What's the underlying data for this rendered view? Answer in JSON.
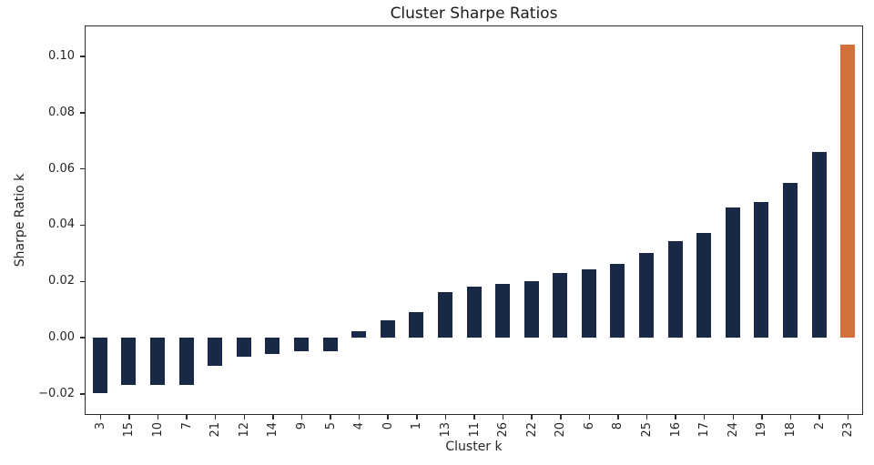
{
  "chart_data": {
    "type": "bar",
    "title": "Cluster Sharpe Ratios",
    "xlabel": "Cluster k",
    "ylabel": "Sharpe Ratio k",
    "categories": [
      "3",
      "15",
      "10",
      "7",
      "21",
      "12",
      "14",
      "9",
      "5",
      "4",
      "0",
      "1",
      "13",
      "11",
      "26",
      "22",
      "20",
      "6",
      "8",
      "25",
      "16",
      "17",
      "24",
      "19",
      "18",
      "2",
      "23"
    ],
    "values": [
      -0.02,
      -0.017,
      -0.017,
      -0.017,
      -0.01,
      -0.007,
      -0.006,
      -0.005,
      -0.005,
      0.002,
      0.006,
      0.009,
      0.016,
      0.018,
      0.019,
      0.02,
      0.023,
      0.024,
      0.026,
      0.03,
      0.034,
      0.037,
      0.046,
      0.048,
      0.055,
      0.066,
      0.104
    ],
    "highlight_category": "23",
    "bar_colors": {
      "default": "#1a2847",
      "highlight": "#d3703c"
    },
    "ylim": [
      -0.0273,
      0.1105
    ],
    "yticks": [
      0.1,
      0.08,
      0.06,
      0.04,
      0.02,
      0.0,
      -0.02
    ],
    "ytick_labels": [
      "0.10",
      "0.08",
      "0.06",
      "0.04",
      "0.02",
      "0.00",
      "−0.02"
    ],
    "grid": false,
    "legend": null,
    "spine_color": "#2e2e2e",
    "background": "#ffffff"
  }
}
